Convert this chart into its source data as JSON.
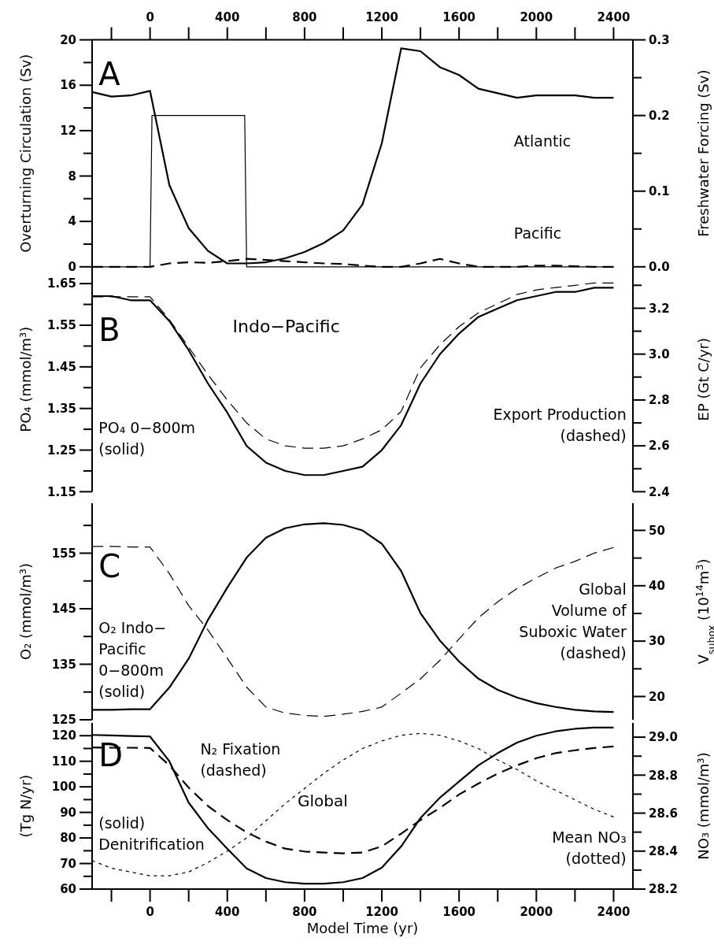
{
  "chart_data": [
    {
      "type": "line",
      "ylabel": "Overturning Circulation (Sv)",
      "y2label": "Freshwater Forcing (Sv)",
      "annotations": [
        "A"
      ],
      "x": [
        -300,
        -200,
        -100,
        0,
        100,
        200,
        300,
        400,
        500,
        600,
        700,
        800,
        900,
        1000,
        1100,
        1200,
        1300,
        1400,
        1500,
        1600,
        1700,
        1800,
        1900,
        2000,
        2100,
        2200,
        2300,
        2400
      ],
      "xlim": [
        -300,
        2500
      ],
      "x2lim": [
        -300,
        2500
      ],
      "x2ticks": [
        {
          "value": -200,
          "label": null
        },
        0,
        {
          "value": 200,
          "label": null
        },
        400,
        {
          "value": 600,
          "label": null
        },
        800,
        {
          "value": 1000,
          "label": null
        },
        1200,
        {
          "value": 1400,
          "label": null
        },
        1600,
        {
          "value": 1800,
          "label": null
        },
        2000,
        {
          "value": 2200,
          "label": null
        },
        2400
      ],
      "ylim": [
        0,
        20
      ],
      "yticks": [
        0,
        {
          "value": 2,
          "label": null
        },
        4,
        {
          "value": 6,
          "label": null
        },
        8,
        {
          "value": 10,
          "label": null
        },
        12,
        {
          "value": 14,
          "label": null
        },
        16,
        {
          "value": 18,
          "label": null
        },
        20
      ],
      "y2lim": [
        0,
        0.3
      ],
      "y2ticks": [
        {
          "value": 0,
          "label": "0.0"
        },
        {
          "value": 0.05,
          "label": null
        },
        0.1,
        {
          "value": 0.15,
          "label": null
        },
        0.2,
        {
          "value": 0.25,
          "label": null
        },
        0.3
      ],
      "series": [
        {
          "name": "Atlantic",
          "color": "#000000",
          "line_style": "solid",
          "values": [
            15.4,
            15.0,
            15.1,
            15.5,
            7.2,
            3.4,
            1.4,
            0.3,
            0.3,
            0.4,
            0.75,
            1.3,
            2.1,
            3.2,
            5.5,
            10.9,
            19.25,
            19.0,
            17.6,
            16.9,
            15.7,
            15.3,
            14.9,
            15.1,
            15.1,
            15.1,
            14.9,
            14.9
          ]
        },
        {
          "name": "Pacific",
          "color": "#000000",
          "line_style": "dashed",
          "values": [
            0,
            0,
            0,
            0,
            0.3,
            0.4,
            0.35,
            0.5,
            0.7,
            0.6,
            0.5,
            0.4,
            0.3,
            0.25,
            0.1,
            0,
            0,
            0.3,
            0.7,
            0.3,
            0,
            0,
            0,
            0.1,
            0.1,
            0.05,
            0,
            0
          ]
        },
        {
          "color": "#000000",
          "line_style": "solid",
          "axis": "y2",
          "x": [
            -300,
            0,
            10,
            490,
            500,
            2400
          ],
          "values": [
            0,
            0,
            0.2,
            0.2,
            0,
            0
          ]
        }
      ]
    },
    {
      "type": "line",
      "ylabel": "PO₄ (mmol/m³)",
      "y2label": "EP (Gt C/yr)",
      "annotations": [
        "B",
        "Indo−Pacific",
        "PO₄ 0−800m\n(solid)",
        "Export Production\n(dashed)"
      ],
      "x": [
        -300,
        -200,
        -100,
        0,
        100,
        200,
        300,
        400,
        500,
        600,
        700,
        800,
        900,
        1000,
        1100,
        1200,
        1300,
        1400,
        1500,
        1600,
        1700,
        1800,
        1900,
        2000,
        2100,
        2200,
        2300,
        2400
      ],
      "xlim": [
        -300,
        2500
      ],
      "ylim": [
        1.15,
        1.69
      ],
      "yticks": [
        1.15,
        {
          "value": 1.2,
          "label": null
        },
        1.25,
        {
          "value": 1.3,
          "label": null
        },
        1.35,
        {
          "value": 1.4,
          "label": null
        },
        1.45,
        {
          "value": 1.5,
          "label": null
        },
        1.55,
        {
          "value": 1.6,
          "label": null
        },
        1.65
      ],
      "y2lim": [
        2.4,
        3.38
      ],
      "y2ticks": [
        2.4,
        {
          "value": 2.5,
          "label": null
        },
        2.6,
        {
          "value": 2.7,
          "label": null
        },
        2.8,
        {
          "value": 2.9,
          "label": null
        },
        {
          "value": 3,
          "label": "3.0"
        },
        {
          "value": 3.1,
          "label": null
        },
        3.2,
        {
          "value": 3.3,
          "label": null
        }
      ],
      "series": [
        {
          "color": "#000000",
          "line_style": "solid",
          "values": [
            1.62,
            1.62,
            1.61,
            1.61,
            1.56,
            1.49,
            1.41,
            1.34,
            1.26,
            1.22,
            1.2,
            1.19,
            1.19,
            1.2,
            1.21,
            1.25,
            1.31,
            1.41,
            1.48,
            1.53,
            1.57,
            1.59,
            1.61,
            1.62,
            1.63,
            1.63,
            1.64,
            1.64
          ]
        },
        {
          "color": "#000000",
          "line_style": "dashed",
          "axis": "y2",
          "values": [
            3.25,
            3.25,
            3.25,
            3.25,
            3.15,
            3.03,
            2.91,
            2.8,
            2.7,
            2.63,
            2.6,
            2.59,
            2.59,
            2.6,
            2.63,
            2.67,
            2.75,
            2.94,
            3.04,
            3.12,
            3.18,
            3.22,
            3.26,
            3.28,
            3.29,
            3.3,
            3.31,
            3.31
          ]
        }
      ]
    },
    {
      "type": "line",
      "ylabel": "O₂ (mmol/m³)",
      "y2label": "V$_{subox}$ (10$^{14}$m$^{3}$)",
      "annotations": [
        "C",
        "O₂ Indo−\nPacific\n0−800m\n(solid)",
        "Global\nVolume of\nSuboxic Water\n(dashed)"
      ],
      "x": [
        -300,
        -200,
        -100,
        0,
        100,
        200,
        300,
        400,
        500,
        600,
        700,
        800,
        900,
        1000,
        1100,
        1200,
        1300,
        1400,
        1500,
        1600,
        1700,
        1800,
        1900,
        2000,
        2100,
        2200,
        2300,
        2400
      ],
      "xlim": [
        -300,
        2500
      ],
      "ylim": [
        125,
        164
      ],
      "yticks": [
        125,
        {
          "value": 130,
          "label": null
        },
        135,
        {
          "value": 140,
          "label": null
        },
        145,
        {
          "value": 150,
          "label": null
        },
        155,
        {
          "value": 160,
          "label": null
        }
      ],
      "y2lim": [
        15.8,
        54.9
      ],
      "y2ticks": [
        20,
        {
          "value": 25,
          "label": null
        },
        30,
        {
          "value": 35,
          "label": null
        },
        40,
        {
          "value": 45,
          "label": null
        },
        50
      ],
      "series": [
        {
          "color": "#000000",
          "line_style": "solid",
          "values": [
            126.8,
            126.8,
            126.9,
            126.9,
            130.8,
            136.0,
            143.0,
            148.8,
            154.2,
            157.8,
            159.5,
            160.2,
            160.4,
            160.1,
            159.1,
            156.7,
            151.8,
            144.2,
            139.3,
            135.5,
            132.4,
            130.4,
            129.0,
            128.0,
            127.3,
            126.8,
            126.5,
            126.4
          ]
        },
        {
          "color": "#000000",
          "line_style": "dashed",
          "axis": "y2",
          "values": [
            47.1,
            47.1,
            47.0,
            47.0,
            42.2,
            36.4,
            32.0,
            26.9,
            21.7,
            18.1,
            17.0,
            16.6,
            16.4,
            16.8,
            17.3,
            18.1,
            20.6,
            23.2,
            26.5,
            30.4,
            34.2,
            37.1,
            39.5,
            41.4,
            43.2,
            44.4,
            45.9,
            46.9
          ]
        }
      ]
    },
    {
      "type": "line",
      "xlabel": "Model Time (yr)",
      "ylabel": "(Tg N/yr)",
      "y2label": "NO₃ (mmol/m³)",
      "annotations": [
        "D",
        "Global",
        "N₂ Fixation\n(dashed)",
        "(solid)\nDenitrification",
        "Mean NO₃\n(dotted)"
      ],
      "x": [
        -300,
        -200,
        -100,
        0,
        100,
        200,
        300,
        400,
        500,
        600,
        700,
        800,
        900,
        1000,
        1100,
        1200,
        1300,
        1400,
        1500,
        1600,
        1700,
        1800,
        1900,
        2000,
        2100,
        2200,
        2300,
        2400
      ],
      "xlim": [
        -300,
        2500
      ],
      "xticks": [
        {
          "value": -200,
          "label": null
        },
        0,
        {
          "value": 200,
          "label": null
        },
        400,
        {
          "value": 600,
          "label": null
        },
        800,
        {
          "value": 1000,
          "label": null
        },
        1200,
        {
          "value": 1400,
          "label": null
        },
        1600,
        {
          "value": 1800,
          "label": null
        },
        2000,
        {
          "value": 2200,
          "label": null
        },
        2400
      ],
      "ylim": [
        60,
        125
      ],
      "yticks": [
        60,
        {
          "value": 65,
          "label": null
        },
        70,
        {
          "value": 75,
          "label": null
        },
        80,
        {
          "value": 85,
          "label": null
        },
        90,
        {
          "value": 95,
          "label": null
        },
        100,
        {
          "value": 105,
          "label": null
        },
        110,
        {
          "value": 115,
          "label": null
        },
        120
      ],
      "y2lim": [
        28.2,
        29.075
      ],
      "y2ticks": [
        28.2,
        {
          "value": 28.3,
          "label": null
        },
        28.4,
        {
          "value": 28.5,
          "label": null
        },
        28.6,
        {
          "value": 28.7,
          "label": null
        },
        28.8,
        {
          "value": 28.9,
          "label": null
        },
        {
          "value": 29,
          "label": "29.0"
        }
      ],
      "series": [
        {
          "color": "#000000",
          "line_style": "solid",
          "values": [
            120.3,
            120.1,
            119.9,
            119.7,
            110.0,
            93.8,
            83.8,
            75.8,
            68.1,
            64.3,
            62.7,
            62.1,
            62.1,
            62.7,
            64.3,
            68.4,
            76.7,
            87.8,
            95.7,
            102.1,
            108.4,
            113.2,
            117.3,
            120.0,
            121.7,
            122.7,
            123.2,
            123.2
          ]
        },
        {
          "color": "#000000",
          "line_style": "dashed",
          "values": [
            115.4,
            115.3,
            115.3,
            115.2,
            108.4,
            99.7,
            92.5,
            87.0,
            82.2,
            78.6,
            75.8,
            74.7,
            74.3,
            74.0,
            74.3,
            76.7,
            81.7,
            87.0,
            91.7,
            97.0,
            101.3,
            105.2,
            108.4,
            111.2,
            113.2,
            114.3,
            115.2,
            115.8
          ]
        },
        {
          "color": "#000000",
          "line_style": "dotted",
          "axis": "y2",
          "values": [
            28.35,
            28.31,
            28.29,
            28.27,
            28.27,
            28.29,
            28.34,
            28.4,
            28.47,
            28.56,
            28.65,
            28.73,
            28.81,
            28.88,
            28.94,
            28.98,
            29.01,
            29.02,
            29.01,
            28.98,
            28.94,
            28.88,
            28.83,
            28.77,
            28.72,
            28.67,
            28.62,
            28.58
          ]
        }
      ]
    }
  ]
}
